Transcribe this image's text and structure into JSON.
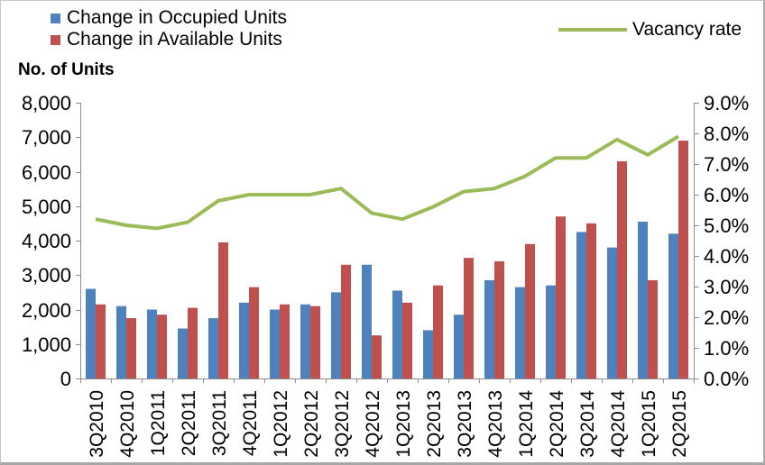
{
  "legend": {
    "occupied_label": "Change in Occupied Units",
    "available_label": "Change in Available Units",
    "vacancy_label": "Vacancy rate"
  },
  "axis": {
    "left_title": "No. of Units"
  },
  "colors": {
    "occupied": "#4F81BD",
    "available": "#C0504D",
    "vacancy": "#9BBB59",
    "axis_line": "#8E8E8E",
    "text": "#000000"
  },
  "chart_data": {
    "type": "bar",
    "subtype": "grouped-bar-with-line-combo",
    "title": "",
    "categories": [
      "3Q2010",
      "4Q2010",
      "1Q2011",
      "2Q2011",
      "3Q2011",
      "4Q2011",
      "1Q2012",
      "2Q2012",
      "3Q2012",
      "4Q2012",
      "1Q2013",
      "2Q2013",
      "3Q2013",
      "4Q2013",
      "1Q2014",
      "2Q2014",
      "3Q2014",
      "4Q2014",
      "1Q2015",
      "2Q2015"
    ],
    "series": [
      {
        "name": "Change in Occupied Units",
        "type": "bar",
        "axis": "left",
        "color": "#4F81BD",
        "values": [
          2600,
          2100,
          2000,
          1450,
          1750,
          2200,
          2000,
          2150,
          2500,
          3300,
          2550,
          1400,
          1850,
          2850,
          2650,
          2700,
          4250,
          3800,
          4550,
          4200
        ]
      },
      {
        "name": "Change in Available Units",
        "type": "bar",
        "axis": "left",
        "color": "#C0504D",
        "values": [
          2150,
          1750,
          1850,
          2050,
          3950,
          2650,
          2150,
          2100,
          3300,
          1250,
          2200,
          2700,
          3500,
          3400,
          3900,
          4700,
          4500,
          6300,
          2850,
          6900
        ]
      },
      {
        "name": "Vacancy rate",
        "type": "line",
        "axis": "right",
        "color": "#9BBB59",
        "values": [
          5.2,
          5.0,
          4.9,
          5.1,
          5.8,
          6.0,
          6.0,
          6.0,
          6.2,
          5.4,
          5.2,
          5.6,
          6.1,
          6.2,
          6.6,
          7.2,
          7.2,
          7.8,
          7.3,
          7.9
        ]
      }
    ],
    "left_axis": {
      "title": "No. of Units",
      "min": 0,
      "max": 8000,
      "step": 1000,
      "tick_labels": [
        "0",
        "1,000",
        "2,000",
        "3,000",
        "4,000",
        "5,000",
        "6,000",
        "7,000",
        "8,000"
      ]
    },
    "right_axis": {
      "min": 0.0,
      "max": 9.0,
      "step": 1.0,
      "unit": "%",
      "tick_labels": [
        "0.0%",
        "1.0%",
        "2.0%",
        "3.0%",
        "4.0%",
        "5.0%",
        "6.0%",
        "7.0%",
        "8.0%",
        "9.0%"
      ]
    },
    "grid": false,
    "legend_position": "top"
  }
}
